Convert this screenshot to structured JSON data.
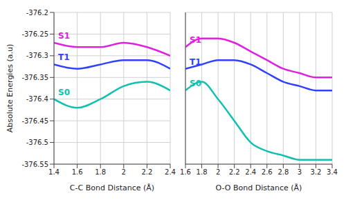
{
  "chart_data": [
    {
      "type": "line",
      "xlabel": "C-C Bond Distance (Å)",
      "ylabel": "Absolute Energies (a.u)",
      "x": [
        1.4,
        1.6,
        1.8,
        2,
        2.2,
        2.4
      ],
      "xlim": [
        1.4,
        2.4
      ],
      "xticks": [
        1.4,
        1.6,
        1.8,
        2,
        2.2,
        2.4
      ],
      "ylim": [
        -376.55,
        -376.2
      ],
      "yticks": [
        -376.55,
        -376.5,
        -376.45,
        -376.4,
        -376.35,
        -376.3,
        -376.25,
        -376.2
      ],
      "grid": true,
      "series": [
        {
          "name": "S1",
          "color": "#e020e0",
          "values": [
            -376.27,
            -376.28,
            -376.28,
            -376.27,
            -376.28,
            -376.3
          ]
        },
        {
          "name": "T1",
          "color": "#3040ff",
          "values": [
            -376.32,
            -376.33,
            -376.32,
            -376.31,
            -376.31,
            -376.33
          ]
        },
        {
          "name": "S0",
          "color": "#10c0b0",
          "values": [
            -376.4,
            -376.42,
            -376.4,
            -376.37,
            -376.36,
            -376.38
          ]
        }
      ]
    },
    {
      "type": "line",
      "xlabel": "O-O Bond Distance (Å)",
      "x": [
        1.6,
        1.8,
        2,
        2.2,
        2.4,
        2.6,
        2.8,
        3,
        3.2,
        3.4
      ],
      "xlim": [
        1.6,
        3.4
      ],
      "xticks": [
        1.6,
        1.8,
        2,
        2.2,
        2.4,
        2.6,
        2.8,
        3,
        3.2,
        3.4
      ],
      "ylim": [
        -376.55,
        -376.2
      ],
      "yticks": [
        -376.55,
        -376.5,
        -376.45,
        -376.4,
        -376.35,
        -376.3,
        -376.25,
        -376.2
      ],
      "grid": true,
      "tick_labels": "x",
      "series": [
        {
          "name": "S1",
          "color": "#e020e0",
          "values": [
            -376.28,
            -376.26,
            -376.26,
            -376.27,
            -376.29,
            -376.31,
            -376.33,
            -376.34,
            -376.35,
            -376.35
          ]
        },
        {
          "name": "T1",
          "color": "#3040ff",
          "values": [
            -376.33,
            -376.32,
            -376.31,
            -376.31,
            -376.32,
            -376.34,
            -376.36,
            -376.37,
            -376.38,
            -376.38
          ]
        },
        {
          "name": "S0",
          "color": "#10c0b0",
          "values": [
            -376.38,
            -376.36,
            -376.4,
            -376.45,
            -376.5,
            -376.52,
            -376.53,
            -376.54,
            -376.54,
            -376.54
          ]
        }
      ]
    }
  ]
}
